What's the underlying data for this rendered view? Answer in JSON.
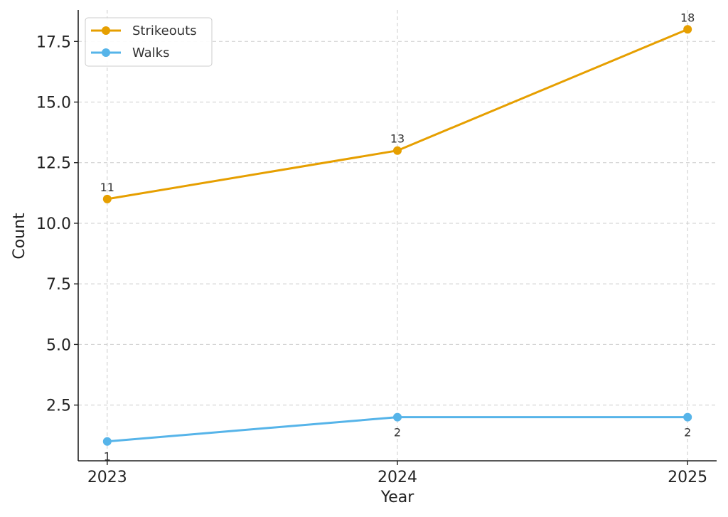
{
  "chart_data": {
    "type": "line",
    "title": "",
    "xlabel": "Year",
    "ylabel": "Count",
    "x": [
      2023,
      2024,
      2025
    ],
    "x_tick_labels": [
      "2023",
      "2024",
      "2025"
    ],
    "y_ticks": [
      2.5,
      5.0,
      7.5,
      10.0,
      12.5,
      15.0,
      17.5
    ],
    "y_tick_labels": [
      "2.5",
      "5.0",
      "7.5",
      "10.0",
      "12.5",
      "15.0",
      "17.5"
    ],
    "ylim": [
      0.2,
      18.8
    ],
    "xlim": [
      2022.9,
      2025.1
    ],
    "grid": true,
    "legend_position": "top-left",
    "series": [
      {
        "name": "Strikeouts",
        "color": "#E69F00",
        "values": [
          11,
          13,
          18
        ],
        "labels": [
          "11",
          "13",
          "18"
        ],
        "label_position": "above"
      },
      {
        "name": "Walks",
        "color": "#56B4E9",
        "values": [
          1,
          2,
          2
        ],
        "labels": [
          "1",
          "2",
          "2"
        ],
        "label_position": "below"
      }
    ]
  }
}
